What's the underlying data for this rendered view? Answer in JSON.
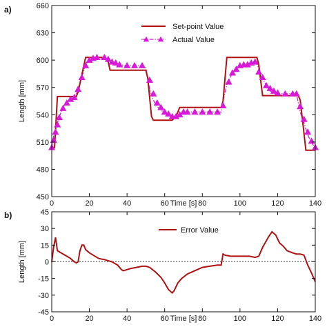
{
  "colors": {
    "setpoint": "#b01010",
    "actual": "#d81ad8",
    "error": "#b01010",
    "axis": "#111111",
    "zero_line": "#111111"
  },
  "chart_data": [
    {
      "type": "line",
      "panel_label": "a)",
      "xlabel": "Time [s]",
      "ylabel": "Length [mm]",
      "xlim": [
        0,
        140
      ],
      "ylim": [
        450,
        660
      ],
      "xticks": [
        0,
        20,
        40,
        60,
        80,
        100,
        120,
        140
      ],
      "yticks": [
        450,
        480,
        510,
        540,
        570,
        600,
        630,
        660
      ],
      "legend_position": "top-center",
      "series": [
        {
          "name": "Set-point Value",
          "style": "solid",
          "points": [
            [
              0,
              504
            ],
            [
              1.5,
              504
            ],
            [
              3,
              560
            ],
            [
              13,
              560
            ],
            [
              14,
              565
            ],
            [
              18,
              603
            ],
            [
              28,
              603
            ],
            [
              30,
              598
            ],
            [
              31,
              589
            ],
            [
              50,
              589
            ],
            [
              51,
              580
            ],
            [
              53,
              538
            ],
            [
              54,
              534
            ],
            [
              64,
              534
            ],
            [
              66,
              538
            ],
            [
              68,
              548
            ],
            [
              90,
              548
            ],
            [
              91,
              555
            ],
            [
              93,
              603
            ],
            [
              109,
              603
            ],
            [
              110,
              595
            ],
            [
              112,
              561
            ],
            [
              131,
              561
            ],
            [
              132,
              556
            ],
            [
              135,
              501
            ],
            [
              140,
              501
            ]
          ]
        },
        {
          "name": "Actual Value",
          "style": "dashdot-triangle",
          "points": [
            [
              0,
              504
            ],
            [
              1,
              516
            ],
            [
              2,
              524
            ],
            [
              3,
              531
            ],
            [
              4,
              537
            ],
            [
              5,
              543
            ],
            [
              6,
              548
            ],
            [
              8,
              554
            ],
            [
              10,
              557
            ],
            [
              12,
              560
            ],
            [
              14,
              567
            ],
            [
              16,
              582
            ],
            [
              18,
              595
            ],
            [
              20,
              599
            ],
            [
              22,
              601
            ],
            [
              24,
              601
            ],
            [
              26,
              602
            ],
            [
              28,
              603
            ],
            [
              30,
              601
            ],
            [
              32,
              597
            ],
            [
              34,
              596
            ],
            [
              36,
              595
            ],
            [
              40,
              594
            ],
            [
              44,
              594
            ],
            [
              48,
              594
            ],
            [
              50,
              592
            ],
            [
              51,
              580
            ],
            [
              52,
              568
            ],
            [
              54,
              556
            ],
            [
              56,
              549
            ],
            [
              58,
              545
            ],
            [
              60,
              542
            ],
            [
              62,
              540
            ],
            [
              64,
              538
            ],
            [
              66,
              539
            ],
            [
              68,
              541
            ],
            [
              70,
              543
            ],
            [
              74,
              543
            ],
            [
              78,
              543
            ],
            [
              82,
              543
            ],
            [
              86,
              543
            ],
            [
              90,
              543
            ],
            [
              91,
              555
            ],
            [
              93,
              573
            ],
            [
              95,
              582
            ],
            [
              97,
              588
            ],
            [
              99,
              592
            ],
            [
              101,
              594
            ],
            [
              103,
              595
            ],
            [
              105,
              597
            ],
            [
              107,
              598
            ],
            [
              109,
              598
            ],
            [
              110,
              590
            ],
            [
              112,
              580
            ],
            [
              114,
              572
            ],
            [
              116,
              566
            ],
            [
              118,
              564
            ],
            [
              120,
              563
            ],
            [
              124,
              563
            ],
            [
              128,
              563
            ],
            [
              130,
              563
            ],
            [
              131,
              553
            ],
            [
              132,
              543
            ],
            [
              134,
              531
            ],
            [
              136,
              518
            ],
            [
              138,
              509
            ],
            [
              140,
              504
            ]
          ],
          "markers": [
            [
              0,
              504
            ],
            [
              1,
              512
            ],
            [
              2,
              521
            ],
            [
              3,
              529
            ],
            [
              4,
              537
            ],
            [
              6,
              547
            ],
            [
              8,
              553
            ],
            [
              10,
              557
            ],
            [
              12,
              559
            ],
            [
              14,
              568
            ],
            [
              16,
              581
            ],
            [
              18,
              594
            ],
            [
              20,
              600
            ],
            [
              22,
              602
            ],
            [
              24,
              603
            ],
            [
              28,
              603
            ],
            [
              30,
              601
            ],
            [
              32,
              598
            ],
            [
              34,
              597
            ],
            [
              36,
              595
            ],
            [
              40,
              594
            ],
            [
              44,
              594
            ],
            [
              48,
              594
            ],
            [
              52,
              578
            ],
            [
              54,
              563
            ],
            [
              56,
              553
            ],
            [
              58,
              548
            ],
            [
              60,
              543
            ],
            [
              62,
              541
            ],
            [
              64,
              538
            ],
            [
              66,
              538
            ],
            [
              68,
              540
            ],
            [
              70,
              543
            ],
            [
              72,
              543
            ],
            [
              76,
              543
            ],
            [
              80,
              543
            ],
            [
              84,
              543
            ],
            [
              88,
              543
            ],
            [
              91,
              550
            ],
            [
              94,
              576
            ],
            [
              96,
              586
            ],
            [
              98,
              590
            ],
            [
              100,
              594
            ],
            [
              102,
              595
            ],
            [
              104,
              595
            ],
            [
              106,
              597
            ],
            [
              108,
              598
            ],
            [
              110,
              587
            ],
            [
              112,
              581
            ],
            [
              114,
              572
            ],
            [
              116,
              569
            ],
            [
              118,
              566
            ],
            [
              120,
              564
            ],
            [
              124,
              563
            ],
            [
              128,
              563
            ],
            [
              130,
              563
            ],
            [
              132,
              549
            ],
            [
              134,
              535
            ],
            [
              136,
              521
            ],
            [
              138,
              511
            ],
            [
              140,
              504
            ]
          ]
        }
      ]
    },
    {
      "type": "line",
      "panel_label": "b)",
      "xlabel": "Time [s]",
      "ylabel": "Length [mm]",
      "xlim": [
        0,
        140
      ],
      "ylim": [
        -45,
        45
      ],
      "xticks": [
        0,
        20,
        40,
        60,
        80,
        100,
        120,
        140
      ],
      "yticks": [
        -45,
        -30,
        -15,
        0,
        15,
        30,
        45
      ],
      "legend_position": "top-center",
      "series": [
        {
          "name": "Error Value",
          "style": "solid",
          "points": [
            [
              0,
              0
            ],
            [
              1,
              13
            ],
            [
              2,
              22
            ],
            [
              3,
              10
            ],
            [
              5,
              8
            ],
            [
              8,
              5
            ],
            [
              10,
              3
            ],
            [
              12,
              0
            ],
            [
              13,
              -1
            ],
            [
              14,
              0
            ],
            [
              15,
              10
            ],
            [
              16,
              15
            ],
            [
              17,
              15
            ],
            [
              18,
              11
            ],
            [
              20,
              8
            ],
            [
              22,
              6
            ],
            [
              25,
              3
            ],
            [
              28,
              2
            ],
            [
              32,
              0
            ],
            [
              35,
              -3
            ],
            [
              37,
              -7
            ],
            [
              38,
              -8
            ],
            [
              40,
              -7
            ],
            [
              42,
              -6
            ],
            [
              45,
              -5
            ],
            [
              48,
              -4
            ],
            [
              50,
              -4
            ],
            [
              52,
              -5
            ],
            [
              55,
              -9
            ],
            [
              58,
              -14
            ],
            [
              60,
              -19
            ],
            [
              62,
              -25
            ],
            [
              64,
              -28
            ],
            [
              65,
              -26
            ],
            [
              67,
              -19
            ],
            [
              69,
              -15
            ],
            [
              72,
              -11
            ],
            [
              76,
              -8
            ],
            [
              80,
              -5
            ],
            [
              84,
              -4
            ],
            [
              88,
              -3
            ],
            [
              90,
              -3
            ],
            [
              91,
              7
            ],
            [
              92,
              6
            ],
            [
              95,
              5
            ],
            [
              100,
              5
            ],
            [
              105,
              5
            ],
            [
              108,
              4
            ],
            [
              110,
              5
            ],
            [
              112,
              13
            ],
            [
              115,
              22
            ],
            [
              117,
              27
            ],
            [
              119,
              24
            ],
            [
              121,
              17
            ],
            [
              123,
              14
            ],
            [
              125,
              10
            ],
            [
              128,
              8
            ],
            [
              130,
              7
            ],
            [
              132,
              7
            ],
            [
              134,
              6
            ],
            [
              136,
              -3
            ],
            [
              138,
              -10
            ],
            [
              140,
              -18
            ]
          ]
        }
      ],
      "reference_line": 0
    }
  ]
}
